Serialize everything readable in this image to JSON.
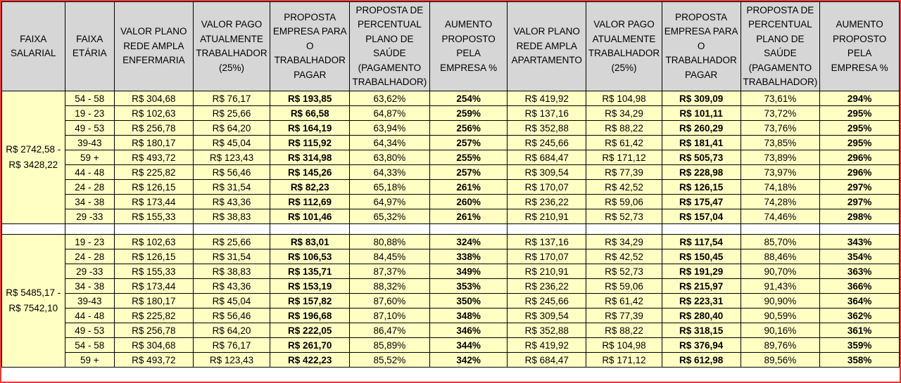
{
  "headers": [
    "FAIXA\nSALARIAL",
    "FAIXA\nETÁRIA",
    "VALOR PLANO\nREDE AMPLA\nENFERMARIA",
    "VALOR PAGO\nATUALMENTE\nTRABALHADOR\n(25%)",
    "PROPOSTA\nEMPRESA PARA\nO TRABALHADOR\nPAGAR",
    "PROPOSTA DE\nPERCENTUAL\nPLANO DE SAÚDE\n(PAGAMENTO\nTRABALHADOR)",
    "AUMENTO\nPROPOSTO PELA\nEMPRESA %",
    "VALOR PLANO\nREDE AMPLA\nAPARTAMENTO",
    "VALOR PAGO\nATUALMENTE\nTRABALHADOR\n(25%)",
    "PROPOSTA\nEMPRESA PARA\nO TRABALHADOR\nPAGAR",
    "PROPOSTA DE\nPERCENTUAL\nPLANO DE SAÚDE\n(PAGAMENTO\nTRABALHADOR)",
    "AUMENTO\nPROPOSTO PELA\nEMPRESA %"
  ],
  "groups": [
    {
      "faixa_salarial": "R$ 2742,58 -\nR$ 3428,22",
      "rows": [
        [
          "54 - 58",
          "R$ 304,68",
          "R$ 76,17",
          "R$ 193,85",
          "63,62%",
          "254%",
          "R$ 419,92",
          "R$ 104,98",
          "R$ 309,09",
          "73,61%",
          "294%"
        ],
        [
          "19 - 23",
          "R$ 102,63",
          "R$ 25,66",
          "R$ 66,58",
          "64,87%",
          "259%",
          "R$ 137,16",
          "R$ 34,29",
          "R$ 101,11",
          "73,72%",
          "295%"
        ],
        [
          "49 - 53",
          "R$ 256,78",
          "R$ 64,20",
          "R$ 164,19",
          "63,94%",
          "256%",
          "R$ 352,88",
          "R$ 88,22",
          "R$ 260,29",
          "73,76%",
          "295%"
        ],
        [
          "39-43",
          "R$ 180,17",
          "R$ 45,04",
          "R$ 115,92",
          "64,34%",
          "257%",
          "R$ 245,66",
          "R$ 61,42",
          "R$ 181,41",
          "73,85%",
          "295%"
        ],
        [
          "59 +",
          "R$ 493,72",
          "R$ 123,43",
          "R$ 314,98",
          "63,80%",
          "255%",
          "R$ 684,47",
          "R$ 171,12",
          "R$ 505,73",
          "73,89%",
          "296%"
        ],
        [
          "44 - 48",
          "R$ 225,82",
          "R$ 56,46",
          "R$ 145,26",
          "64,33%",
          "257%",
          "R$ 309,54",
          "R$ 77,39",
          "R$ 228,98",
          "73,97%",
          "296%"
        ],
        [
          "24 - 28",
          "R$ 126,15",
          "R$ 31,54",
          "R$ 82,23",
          "65,18%",
          "261%",
          "R$ 170,07",
          "R$ 42,52",
          "R$ 126,15",
          "74,18%",
          "297%"
        ],
        [
          "34 - 38",
          "R$ 173,44",
          "R$ 43,36",
          "R$ 112,69",
          "64,97%",
          "260%",
          "R$ 236,22",
          "R$ 59,06",
          "R$ 175,47",
          "74,28%",
          "297%"
        ],
        [
          "29 -33",
          "R$ 155,33",
          "R$ 38,83",
          "R$ 101,46",
          "65,32%",
          "261%",
          "R$ 210,91",
          "R$ 52,73",
          "R$ 157,04",
          "74,46%",
          "298%"
        ]
      ]
    },
    {
      "faixa_salarial": "R$ 5485,17 -\nR$ 7542,10",
      "rows": [
        [
          "19 - 23",
          "R$ 102,63",
          "R$ 25,66",
          "R$ 83,01",
          "80,88%",
          "324%",
          "R$ 137,16",
          "R$ 34,29",
          "R$ 117,54",
          "85,70%",
          "343%"
        ],
        [
          "24 - 28",
          "R$ 126,15",
          "R$ 31,54",
          "R$ 106,53",
          "84,45%",
          "338%",
          "R$ 170,07",
          "R$ 42,52",
          "R$ 150,45",
          "88,46%",
          "354%"
        ],
        [
          "29 -33",
          "R$ 155,33",
          "R$ 38,83",
          "R$ 135,71",
          "87,37%",
          "349%",
          "R$ 210,91",
          "R$ 52,73",
          "R$ 191,29",
          "90,70%",
          "363%"
        ],
        [
          "34 - 38",
          "R$ 173,44",
          "R$ 43,36",
          "R$ 153,19",
          "88,32%",
          "353%",
          "R$ 236,22",
          "R$ 59,06",
          "R$ 215,97",
          "91,43%",
          "366%"
        ],
        [
          "39-43",
          "R$ 180,17",
          "R$ 45,04",
          "R$ 157,82",
          "87,60%",
          "350%",
          "R$ 245,66",
          "R$ 61,42",
          "R$ 223,31",
          "90,90%",
          "364%"
        ],
        [
          "44 - 48",
          "R$ 225,82",
          "R$ 56,46",
          "R$ 196,68",
          "87,10%",
          "348%",
          "R$ 309,54",
          "R$ 77,39",
          "R$ 280,40",
          "90,59%",
          "362%"
        ],
        [
          "49 - 53",
          "R$ 256,78",
          "R$ 64,20",
          "R$ 222,05",
          "86,47%",
          "346%",
          "R$ 352,88",
          "R$ 88,22",
          "R$ 318,15",
          "90,16%",
          "361%"
        ],
        [
          "54 - 58",
          "R$ 304,68",
          "R$ 76,17",
          "R$ 261,70",
          "85,89%",
          "344%",
          "R$ 419,92",
          "R$ 104,98",
          "R$ 376,94",
          "89,76%",
          "359%"
        ],
        [
          "59 +",
          "R$ 493,72",
          "R$ 123,43",
          "R$ 422,23",
          "85,52%",
          "342%",
          "R$ 684,47",
          "R$ 171,12",
          "R$ 612,98",
          "89,56%",
          "358%"
        ]
      ]
    }
  ]
}
